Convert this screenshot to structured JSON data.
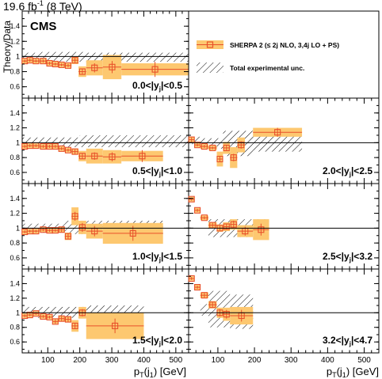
{
  "header": {
    "lumi": "19.6 fb",
    "lumi_exp": "-1",
    "energy": " (8 TeV)",
    "experiment": "CMS"
  },
  "legend": {
    "sherpa": "SHERPA 2 (≤ 2j NLO, 3,4j LO + PS)",
    "exp_unc": "Total experimental unc."
  },
  "colors": {
    "band": "#fdc870",
    "marker": "#e8502a",
    "line": "#000000"
  },
  "axes": {
    "ylabel": "Theory/Data",
    "xlabel_left": "p",
    "xlabel_sub1": "T",
    "xlabel_mid": "(j",
    "xlabel_sub2": "1",
    "xlabel_unit": ") [GeV]",
    "y_ticks": [
      "0.6",
      "0.8",
      "1",
      "1.2",
      "1.4"
    ],
    "x_ticks": [
      "100",
      "200",
      "300",
      "400",
      "500"
    ]
  },
  "chart_data": [
    {
      "type": "scatter",
      "label": "0.0<|y",
      "label_sub": "j",
      "label_end": "|<0.5",
      "xlim": [
        20,
        540
      ],
      "ylim": [
        0.45,
        1.6
      ],
      "points": [
        {
          "x": [
            20,
            36
          ],
          "y": 0.94,
          "stat": 0.02,
          "sys": 0.03
        },
        {
          "x": [
            36,
            52
          ],
          "y": 0.95,
          "stat": 0.02,
          "sys": 0.03
        },
        {
          "x": [
            52,
            74
          ],
          "y": 0.94,
          "stat": 0.02,
          "sys": 0.03
        },
        {
          "x": [
            74,
            97
          ],
          "y": 0.94,
          "stat": 0.02,
          "sys": 0.03
        },
        {
          "x": [
            97,
            114
          ],
          "y": 0.91,
          "stat": 0.02,
          "sys": 0.03
        },
        {
          "x": [
            114,
            133
          ],
          "y": 0.9,
          "stat": 0.02,
          "sys": 0.03
        },
        {
          "x": [
            133,
            153
          ],
          "y": 0.89,
          "stat": 0.02,
          "sys": 0.03
        },
        {
          "x": [
            153,
            174
          ],
          "y": 0.88,
          "stat": 0.02,
          "sys": 0.03
        },
        {
          "x": [
            174,
            196
          ],
          "y": 0.95,
          "stat": 0.03,
          "sys": 0.05
        },
        {
          "x": [
            196,
            220
          ],
          "y": 0.8,
          "stat": 0.04,
          "sys": 0.07
        },
        {
          "x": [
            220,
            272
          ],
          "y": 0.85,
          "stat": 0.06,
          "sys": 0.1
        },
        {
          "x": [
            272,
            330
          ],
          "y": 0.86,
          "stat": 0.08,
          "sys": 0.16
        },
        {
          "x": [
            330,
            540
          ],
          "y": 0.83,
          "stat": 0.1,
          "sys": 0.08
        }
      ],
      "unc_band": [
        {
          "x": [
            20,
            74
          ],
          "lo": 0.93,
          "hi": 1.05
        },
        {
          "x": [
            74,
            220
          ],
          "lo": 0.93,
          "hi": 1.06
        },
        {
          "x": [
            220,
            540
          ],
          "lo": 0.93,
          "hi": 1.05
        }
      ]
    },
    {
      "type": "legend-panel"
    },
    {
      "type": "scatter",
      "label": "0.5<|y",
      "label_sub": "j",
      "label_end": "|<1.0",
      "xlim": [
        20,
        540
      ],
      "ylim": [
        0.45,
        1.6
      ],
      "points": [
        {
          "x": [
            20,
            36
          ],
          "y": 0.95,
          "stat": 0.02,
          "sys": 0.03
        },
        {
          "x": [
            36,
            52
          ],
          "y": 0.96,
          "stat": 0.02,
          "sys": 0.03
        },
        {
          "x": [
            52,
            74
          ],
          "y": 0.96,
          "stat": 0.02,
          "sys": 0.03
        },
        {
          "x": [
            74,
            97
          ],
          "y": 0.95,
          "stat": 0.02,
          "sys": 0.03
        },
        {
          "x": [
            97,
            114
          ],
          "y": 0.95,
          "stat": 0.02,
          "sys": 0.03
        },
        {
          "x": [
            114,
            133
          ],
          "y": 0.95,
          "stat": 0.02,
          "sys": 0.03
        },
        {
          "x": [
            133,
            153
          ],
          "y": 0.92,
          "stat": 0.02,
          "sys": 0.03
        },
        {
          "x": [
            153,
            174
          ],
          "y": 0.9,
          "stat": 0.02,
          "sys": 0.03
        },
        {
          "x": [
            174,
            196
          ],
          "y": 0.88,
          "stat": 0.03,
          "sys": 0.04
        },
        {
          "x": [
            196,
            220
          ],
          "y": 0.82,
          "stat": 0.04,
          "sys": 0.07
        },
        {
          "x": [
            220,
            272
          ],
          "y": 0.82,
          "stat": 0.05,
          "sys": 0.1
        },
        {
          "x": [
            272,
            330
          ],
          "y": 0.81,
          "stat": 0.06,
          "sys": 0.09
        },
        {
          "x": [
            330,
            460
          ],
          "y": 0.82,
          "stat": 0.08,
          "sys": 0.07
        }
      ],
      "unc_band": [
        {
          "x": [
            20,
            200
          ],
          "lo": 0.94,
          "hi": 1.07
        },
        {
          "x": [
            200,
            540
          ],
          "lo": 0.94,
          "hi": 1.1
        }
      ]
    },
    {
      "type": "scatter",
      "label": "2.0<|y",
      "label_sub": "j",
      "label_end": "|<2.5",
      "xlim": [
        20,
        540
      ],
      "ylim": [
        0.45,
        1.6
      ],
      "points": [
        {
          "x": [
            20,
            36
          ],
          "y": 1.04,
          "stat": 0.03,
          "sys": 0.04
        },
        {
          "x": [
            36,
            52
          ],
          "y": 0.97,
          "stat": 0.02,
          "sys": 0.03
        },
        {
          "x": [
            52,
            74
          ],
          "y": 0.95,
          "stat": 0.02,
          "sys": 0.03
        },
        {
          "x": [
            74,
            97
          ],
          "y": 0.93,
          "stat": 0.02,
          "sys": 0.03
        },
        {
          "x": [
            97,
            114
          ],
          "y": 0.78,
          "stat": 0.04,
          "sys": 0.1
        },
        {
          "x": [
            114,
            133
          ],
          "y": 0.93,
          "stat": 0.04,
          "sys": 0.08
        },
        {
          "x": [
            133,
            153
          ],
          "y": 0.8,
          "stat": 0.05,
          "sys": 0.14
        },
        {
          "x": [
            153,
            174
          ],
          "y": 0.97,
          "stat": 0.05,
          "sys": 0.1
        },
        {
          "x": [
            196,
            330
          ],
          "y": 1.14,
          "stat": 0.06,
          "sys": 0.06
        }
      ],
      "unc_band": [
        {
          "x": [
            20,
            52
          ],
          "lo": 0.98,
          "hi": 1.08
        },
        {
          "x": [
            52,
            114
          ],
          "lo": 0.92,
          "hi": 1.06
        },
        {
          "x": [
            114,
            196
          ],
          "lo": 0.82,
          "hi": 1.16
        },
        {
          "x": [
            196,
            330
          ],
          "lo": 0.88,
          "hi": 1.1
        }
      ]
    },
    {
      "type": "scatter",
      "label": "1.0<|y",
      "label_sub": "j",
      "label_end": "|<1.5",
      "xlim": [
        20,
        540
      ],
      "ylim": [
        0.45,
        1.6
      ],
      "points": [
        {
          "x": [
            20,
            36
          ],
          "y": 0.95,
          "stat": 0.02,
          "sys": 0.03
        },
        {
          "x": [
            36,
            52
          ],
          "y": 0.96,
          "stat": 0.02,
          "sys": 0.03
        },
        {
          "x": [
            52,
            74
          ],
          "y": 0.96,
          "stat": 0.02,
          "sys": 0.03
        },
        {
          "x": [
            74,
            97
          ],
          "y": 0.98,
          "stat": 0.02,
          "sys": 0.03
        },
        {
          "x": [
            97,
            114
          ],
          "y": 0.97,
          "stat": 0.02,
          "sys": 0.03
        },
        {
          "x": [
            114,
            133
          ],
          "y": 0.97,
          "stat": 0.02,
          "sys": 0.03
        },
        {
          "x": [
            133,
            153
          ],
          "y": 0.98,
          "stat": 0.03,
          "sys": 0.04
        },
        {
          "x": [
            153,
            174
          ],
          "y": 0.89,
          "stat": 0.04,
          "sys": 0.05
        },
        {
          "x": [
            174,
            196
          ],
          "y": 1.16,
          "stat": 0.06,
          "sys": 0.12
        },
        {
          "x": [
            196,
            220
          ],
          "y": 1.01,
          "stat": 0.06,
          "sys": 0.09
        },
        {
          "x": [
            220,
            272
          ],
          "y": 0.96,
          "stat": 0.07,
          "sys": 0.1
        },
        {
          "x": [
            272,
            460
          ],
          "y": 0.93,
          "stat": 0.1,
          "sys": 0.14
        }
      ],
      "unc_band": [
        {
          "x": [
            20,
            153
          ],
          "lo": 0.94,
          "hi": 1.06
        },
        {
          "x": [
            153,
            460
          ],
          "lo": 0.92,
          "hi": 1.1
        }
      ]
    },
    {
      "type": "scatter",
      "label": "2.5<|y",
      "label_sub": "j",
      "label_end": "|<3.2",
      "xlim": [
        20,
        540
      ],
      "ylim": [
        0.45,
        1.6
      ],
      "points": [
        {
          "x": [
            20,
            36
          ],
          "y": 1.39,
          "stat": 0.02,
          "sys": 0.03
        },
        {
          "x": [
            36,
            52
          ],
          "y": 1.24,
          "stat": 0.02,
          "sys": 0.03
        },
        {
          "x": [
            52,
            74
          ],
          "y": 1.14,
          "stat": 0.02,
          "sys": 0.03
        },
        {
          "x": [
            74,
            97
          ],
          "y": 1.04,
          "stat": 0.03,
          "sys": 0.04
        },
        {
          "x": [
            97,
            114
          ],
          "y": 1.0,
          "stat": 0.03,
          "sys": 0.05
        },
        {
          "x": [
            114,
            133
          ],
          "y": 1.02,
          "stat": 0.04,
          "sys": 0.06
        },
        {
          "x": [
            133,
            153
          ],
          "y": 1.05,
          "stat": 0.05,
          "sys": 0.07
        },
        {
          "x": [
            153,
            196
          ],
          "y": 0.96,
          "stat": 0.06,
          "sys": 0.08
        },
        {
          "x": [
            196,
            240
          ],
          "y": 0.98,
          "stat": 0.08,
          "sys": 0.14
        }
      ],
      "unc_band": [
        {
          "x": [
            74,
            240
          ],
          "lo": 0.88,
          "hi": 1.12
        }
      ]
    },
    {
      "type": "scatter",
      "label": "1.5<|y",
      "label_sub": "j",
      "label_end": "|<2.0",
      "xlim": [
        20,
        540
      ],
      "ylim": [
        0.45,
        1.6
      ],
      "points": [
        {
          "x": [
            20,
            36
          ],
          "y": 0.96,
          "stat": 0.02,
          "sys": 0.03
        },
        {
          "x": [
            36,
            52
          ],
          "y": 0.97,
          "stat": 0.02,
          "sys": 0.03
        },
        {
          "x": [
            52,
            74
          ],
          "y": 0.99,
          "stat": 0.02,
          "sys": 0.03
        },
        {
          "x": [
            74,
            97
          ],
          "y": 0.95,
          "stat": 0.02,
          "sys": 0.03
        },
        {
          "x": [
            97,
            114
          ],
          "y": 0.94,
          "stat": 0.02,
          "sys": 0.03
        },
        {
          "x": [
            114,
            133
          ],
          "y": 0.88,
          "stat": 0.03,
          "sys": 0.03
        },
        {
          "x": [
            133,
            153
          ],
          "y": 0.92,
          "stat": 0.03,
          "sys": 0.04
        },
        {
          "x": [
            153,
            174
          ],
          "y": 0.91,
          "stat": 0.03,
          "sys": 0.04
        },
        {
          "x": [
            174,
            196
          ],
          "y": 0.82,
          "stat": 0.04,
          "sys": 0.08
        },
        {
          "x": [
            196,
            220
          ],
          "y": 1.0,
          "stat": 0.05,
          "sys": 0.08
        },
        {
          "x": [
            220,
            400
          ],
          "y": 0.82,
          "stat": 0.1,
          "sys": 0.18
        }
      ],
      "unc_band": [
        {
          "x": [
            20,
            220
          ],
          "lo": 0.93,
          "hi": 1.08
        },
        {
          "x": [
            220,
            400
          ],
          "lo": 0.9,
          "hi": 1.1
        }
      ]
    },
    {
      "type": "scatter",
      "label": "3.2<|y",
      "label_sub": "j",
      "label_end": "|<4.7",
      "xlim": [
        20,
        540
      ],
      "ylim": [
        0.45,
        1.6
      ],
      "points": [
        {
          "x": [
            20,
            36
          ],
          "y": 1.47,
          "stat": 0.02,
          "sys": 0.03
        },
        {
          "x": [
            36,
            52
          ],
          "y": 1.35,
          "stat": 0.02,
          "sys": 0.04
        },
        {
          "x": [
            52,
            74
          ],
          "y": 1.24,
          "stat": 0.03,
          "sys": 0.04
        },
        {
          "x": [
            74,
            97
          ],
          "y": 1.11,
          "stat": 0.04,
          "sys": 0.05
        },
        {
          "x": [
            97,
            114
          ],
          "y": 1.0,
          "stat": 0.05,
          "sys": 0.07
        },
        {
          "x": [
            114,
            133
          ],
          "y": 0.98,
          "stat": 0.06,
          "sys": 0.09
        },
        {
          "x": [
            133,
            196
          ],
          "y": 0.96,
          "stat": 0.08,
          "sys": 0.12
        }
      ],
      "unc_band": [
        {
          "x": [
            52,
            74
          ],
          "lo": 0.96,
          "hi": 1.12
        },
        {
          "x": [
            74,
            133
          ],
          "lo": 0.8,
          "hi": 1.3
        },
        {
          "x": [
            133,
            196
          ],
          "lo": 0.78,
          "hi": 1.25
        }
      ]
    }
  ]
}
